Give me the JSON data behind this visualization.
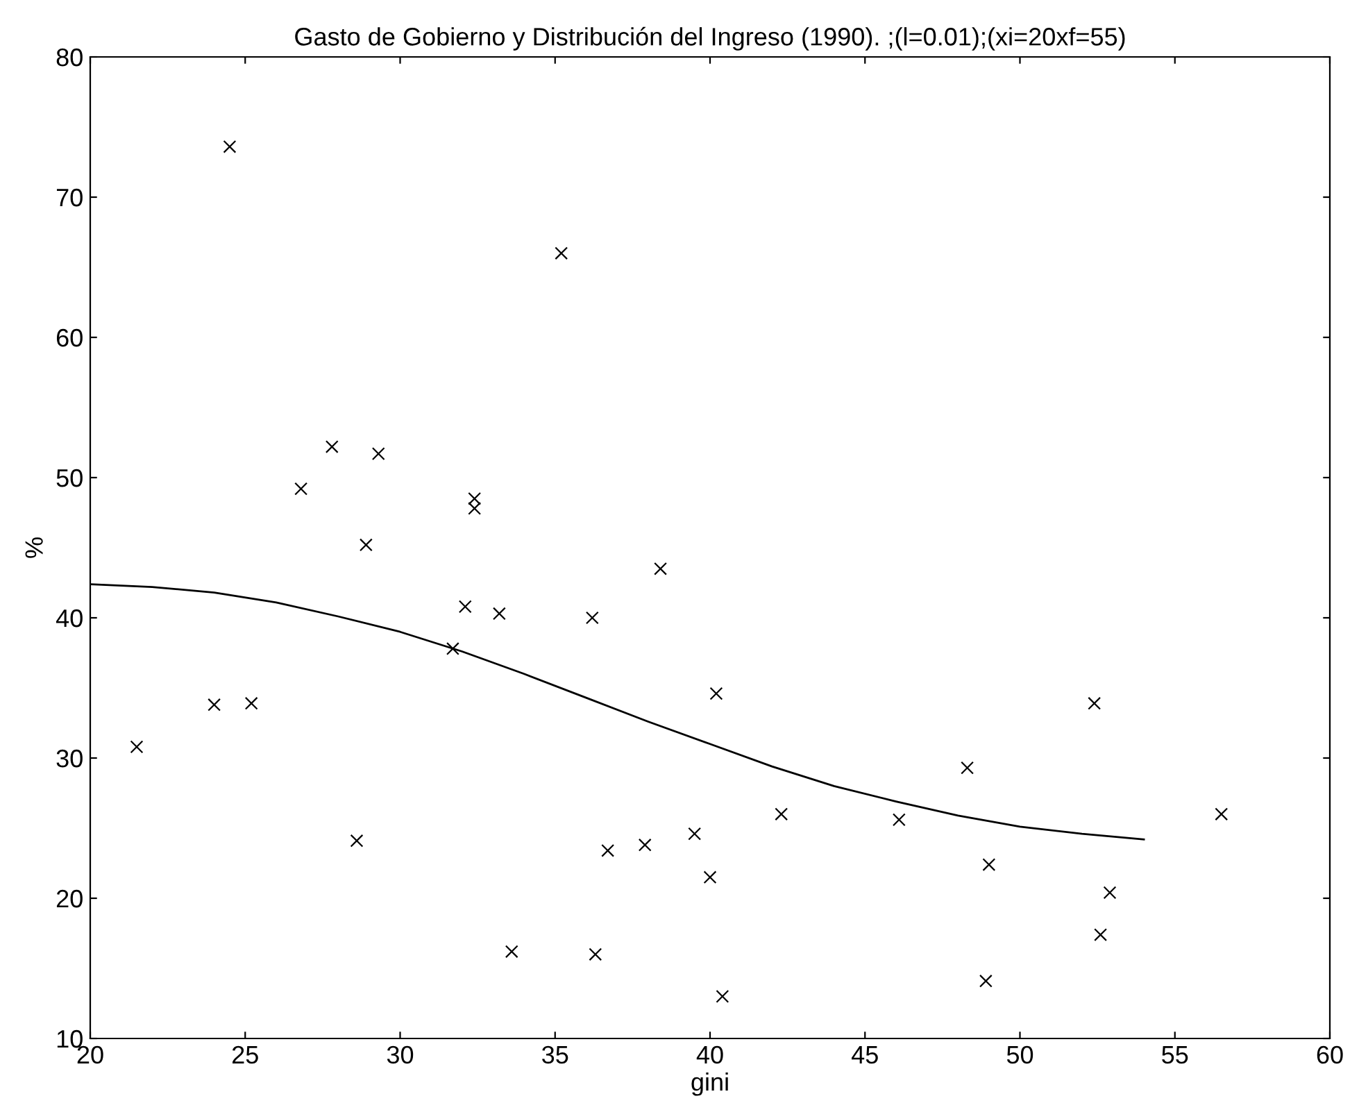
{
  "chart_data": {
    "type": "scatter",
    "title": "Gasto de Gobierno y Distribución del Ingreso (1990). ;(l=0.01);(xi=20xf=55)",
    "xlabel": "gini",
    "ylabel": "%",
    "xlim": [
      20,
      60
    ],
    "ylim": [
      10,
      80
    ],
    "xticks": [
      20,
      25,
      30,
      35,
      40,
      45,
      50,
      55,
      60
    ],
    "yticks": [
      10,
      20,
      30,
      40,
      50,
      60,
      70,
      80
    ],
    "grid": false,
    "legend": false,
    "series": [
      {
        "marker": "cross",
        "color": "#000000",
        "x": [
          21.5,
          24.5,
          24.0,
          25.2,
          26.8,
          27.8,
          28.6,
          28.9,
          29.3,
          31.7,
          32.1,
          32.4,
          32.4,
          33.2,
          33.6,
          35.2,
          36.2,
          36.3,
          36.7,
          37.9,
          38.4,
          39.5,
          40.0,
          40.2,
          40.4,
          42.3,
          46.1,
          48.3,
          48.9,
          49.0,
          52.4,
          52.6,
          52.9,
          56.5
        ],
        "values": [
          30.8,
          73.6,
          33.8,
          33.9,
          49.2,
          52.2,
          24.1,
          45.2,
          51.7,
          37.8,
          40.8,
          48.5,
          47.8,
          40.3,
          16.2,
          66.0,
          40.0,
          16.0,
          23.4,
          23.8,
          43.5,
          24.6,
          21.5,
          34.6,
          13.0,
          26.0,
          25.6,
          29.3,
          14.1,
          22.4,
          33.9,
          17.4,
          20.4,
          26.0
        ]
      },
      {
        "type": "line",
        "marker": "none",
        "line_style": "solid",
        "color": "#000000",
        "x": [
          20,
          22,
          24,
          26,
          28,
          30,
          32,
          34,
          36,
          38,
          40,
          42,
          44,
          46,
          48,
          50,
          52,
          54
        ],
        "values": [
          42.4,
          42.2,
          41.8,
          41.1,
          40.1,
          39.0,
          37.6,
          36.0,
          34.3,
          32.6,
          31.0,
          29.4,
          28.0,
          26.9,
          25.9,
          25.1,
          24.6,
          24.2
        ]
      }
    ]
  }
}
